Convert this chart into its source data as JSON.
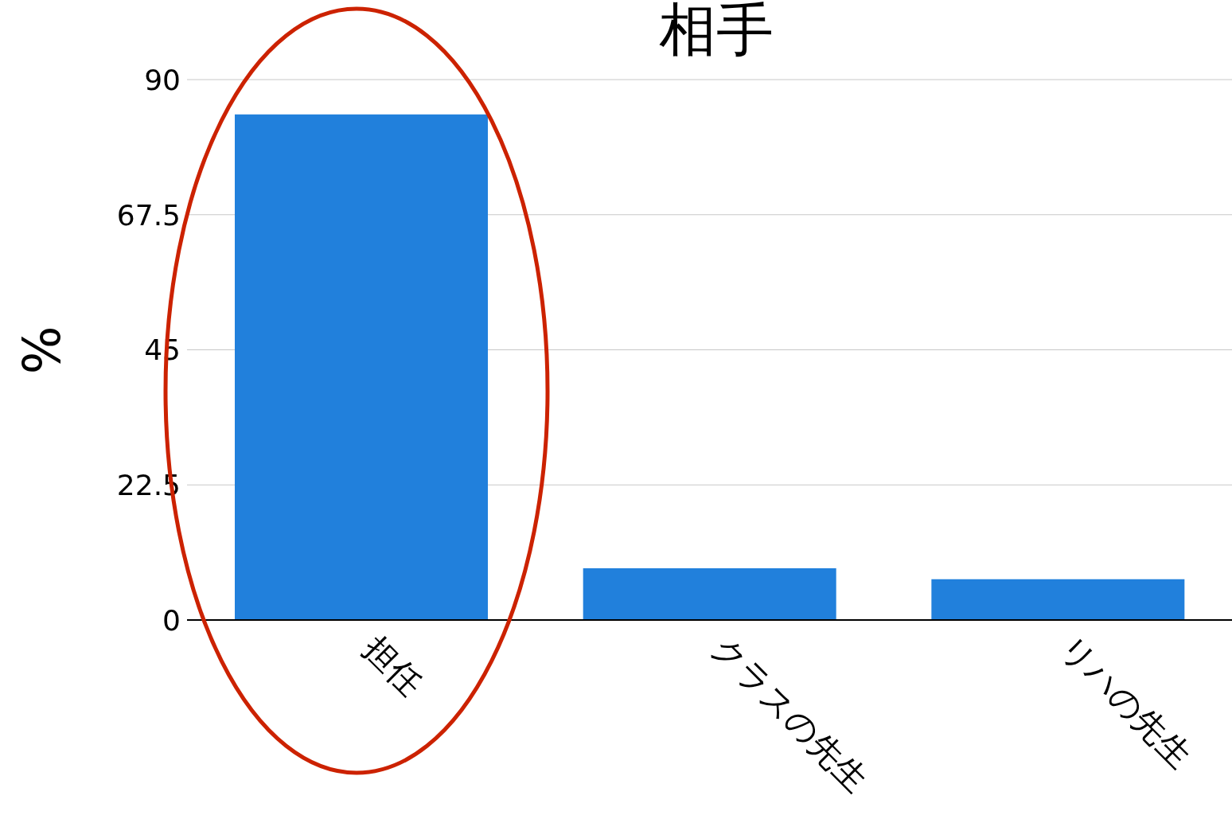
{
  "chart_data": {
    "type": "bar",
    "title": "相手",
    "ylabel": "%",
    "categories": [
      "担任",
      "クラスの先生",
      "リハの先生"
    ],
    "values": [
      84.2,
      8.6,
      6.8
    ],
    "color": "#2180dc",
    "ylim": [
      0,
      90
    ],
    "yticks": [
      0,
      22.5,
      45,
      67.5,
      90
    ],
    "grid": "y"
  }
}
